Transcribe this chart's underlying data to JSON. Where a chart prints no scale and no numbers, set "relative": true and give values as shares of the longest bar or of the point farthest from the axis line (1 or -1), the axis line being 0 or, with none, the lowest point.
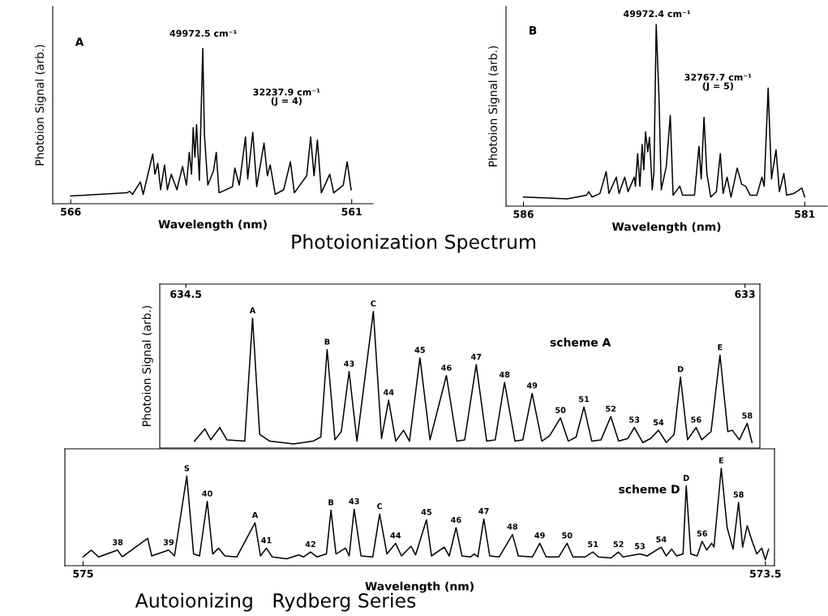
{
  "chart_data": [
    {
      "type": "line",
      "title": "A",
      "xlabel": "Wavelength (nm)",
      "ylabel": "Photoion Signal (arb.)",
      "relative": true,
      "xlim": [
        566.32,
        560.62
      ],
      "xticks": [
        566,
        561
      ],
      "x": [
        566.0,
        565.0,
        564.95,
        564.9,
        564.76,
        564.71,
        564.54,
        564.5,
        564.45,
        564.4,
        564.33,
        564.28,
        564.21,
        564.11,
        564.01,
        563.94,
        563.89,
        563.85,
        563.82,
        563.79,
        563.76,
        563.71,
        563.65,
        563.62,
        563.56,
        563.46,
        563.41,
        563.36,
        563.12,
        563.08,
        563.0,
        562.89,
        562.85,
        562.76,
        562.69,
        562.56,
        562.5,
        562.45,
        562.36,
        562.21,
        562.09,
        562.02,
        561.8,
        561.73,
        561.67,
        561.61,
        561.54,
        561.39,
        561.32,
        561.15,
        561.08,
        561.01
      ],
      "series": [
        {
          "color": "#000000",
          "values": [
            0.05,
            0.07,
            0.08,
            0.06,
            0.14,
            0.06,
            0.32,
            0.19,
            0.26,
            0.09,
            0.25,
            0.09,
            0.19,
            0.09,
            0.24,
            0.12,
            0.33,
            0.19,
            0.49,
            0.3,
            0.51,
            0.15,
            1.0,
            0.44,
            0.12,
            0.21,
            0.33,
            0.07,
            0.11,
            0.23,
            0.12,
            0.43,
            0.16,
            0.46,
            0.11,
            0.39,
            0.18,
            0.25,
            0.06,
            0.09,
            0.27,
            0.07,
            0.18,
            0.43,
            0.18,
            0.41,
            0.07,
            0.19,
            0.07,
            0.12,
            0.27,
            0.09
          ]
        }
      ],
      "annotations": [
        "49972.5 cm⁻¹",
        "32237.9 cm⁻¹\n(J = 4)",
        "Photoionization Spectrum"
      ]
    },
    {
      "type": "line",
      "title": "B",
      "xlabel": "Wavelength (nm)",
      "ylabel": "Photoion Signal (arb.)",
      "relative": true,
      "xlim": [
        586.31,
        580.6
      ],
      "xticks": [
        586,
        581
      ],
      "x": [
        586.0,
        585.22,
        584.88,
        584.84,
        584.78,
        584.64,
        584.53,
        584.48,
        584.35,
        584.3,
        584.2,
        584.14,
        584.03,
        584.01,
        583.97,
        583.93,
        583.89,
        583.86,
        583.83,
        583.79,
        583.76,
        583.71,
        583.68,
        583.64,
        583.59,
        583.55,
        583.46,
        583.39,
        583.34,
        583.22,
        583.17,
        582.96,
        582.88,
        582.84,
        582.79,
        582.74,
        582.67,
        582.57,
        582.5,
        582.45,
        582.38,
        582.31,
        582.2,
        582.12,
        582.05,
        581.97,
        581.85,
        581.76,
        581.72,
        581.65,
        581.59,
        581.51,
        581.45,
        581.37,
        581.32,
        581.19,
        581.05,
        581.0
      ],
      "series": [
        {
          "color": "#000000",
          "values": [
            0.05,
            0.04,
            0.06,
            0.08,
            0.05,
            0.07,
            0.19,
            0.07,
            0.16,
            0.07,
            0.16,
            0.08,
            0.16,
            0.11,
            0.29,
            0.11,
            0.34,
            0.2,
            0.41,
            0.3,
            0.38,
            0.09,
            0.19,
            1.0,
            0.59,
            0.09,
            0.22,
            0.5,
            0.06,
            0.11,
            0.06,
            0.06,
            0.33,
            0.15,
            0.49,
            0.18,
            0.05,
            0.08,
            0.29,
            0.07,
            0.16,
            0.05,
            0.21,
            0.12,
            0.11,
            0.06,
            0.06,
            0.16,
            0.11,
            0.65,
            0.15,
            0.31,
            0.08,
            0.18,
            0.06,
            0.07,
            0.1,
            0.05
          ]
        }
      ],
      "annotations": [
        "49972.4 cm⁻¹",
        "32767.7 cm⁻¹\n(J = 5)"
      ]
    },
    {
      "type": "line",
      "title": "scheme A",
      "ylabel": "Photoion Signal (arb.)",
      "relative": true,
      "xlim": [
        634.57,
        632.96
      ],
      "xticks": [
        634.5,
        633
      ],
      "x": [
        634.477,
        634.449,
        634.433,
        634.409,
        634.39,
        634.342,
        634.321,
        634.302,
        634.275,
        634.211,
        634.159,
        634.138,
        634.121,
        634.1,
        634.083,
        634.062,
        634.041,
        633.997,
        633.975,
        633.956,
        633.937,
        633.916,
        633.9,
        633.872,
        633.845,
        633.801,
        633.773,
        633.752,
        633.721,
        633.693,
        633.67,
        633.645,
        633.617,
        633.596,
        633.571,
        633.545,
        633.524,
        633.495,
        633.474,
        633.453,
        633.432,
        633.411,
        633.386,
        633.36,
        633.339,
        633.314,
        633.297,
        633.274,
        633.253,
        633.232,
        633.211,
        633.19,
        633.173,
        633.154,
        633.131,
        633.116,
        633.091,
        633.067,
        633.046,
        633.034,
        633.015,
        632.994,
        632.981
      ],
      "series": [
        {
          "color": "#000000",
          "values": [
            0.05,
            0.14,
            0.06,
            0.15,
            0.06,
            0.05,
            0.95,
            0.1,
            0.05,
            0.03,
            0.05,
            0.08,
            0.72,
            0.06,
            0.12,
            0.56,
            0.05,
            1.0,
            0.07,
            0.35,
            0.05,
            0.13,
            0.05,
            0.66,
            0.06,
            0.53,
            0.05,
            0.06,
            0.61,
            0.05,
            0.06,
            0.48,
            0.05,
            0.06,
            0.4,
            0.05,
            0.09,
            0.22,
            0.05,
            0.08,
            0.3,
            0.05,
            0.06,
            0.23,
            0.05,
            0.07,
            0.15,
            0.04,
            0.07,
            0.13,
            0.04,
            0.1,
            0.52,
            0.06,
            0.15,
            0.06,
            0.12,
            0.68,
            0.12,
            0.13,
            0.06,
            0.18,
            0.04
          ]
        }
      ],
      "annotations": [
        {
          "text": "A",
          "x": 634.321,
          "y": 0.95
        },
        {
          "text": "B",
          "x": 634.121,
          "y": 0.72
        },
        {
          "text": "C",
          "x": 633.997,
          "y": 1.0
        },
        {
          "text": "D",
          "x": 633.173,
          "y": 0.52
        },
        {
          "text": "E",
          "x": 633.067,
          "y": 0.68
        },
        {
          "text": "43",
          "x": 634.062,
          "y": 0.56
        },
        {
          "text": "44",
          "x": 633.956,
          "y": 0.35
        },
        {
          "text": "45",
          "x": 633.872,
          "y": 0.66
        },
        {
          "text": "46",
          "x": 633.801,
          "y": 0.53
        },
        {
          "text": "47",
          "x": 633.721,
          "y": 0.61
        },
        {
          "text": "48",
          "x": 633.645,
          "y": 0.48
        },
        {
          "text": "49",
          "x": 633.571,
          "y": 0.4
        },
        {
          "text": "50",
          "x": 633.495,
          "y": 0.22
        },
        {
          "text": "51",
          "x": 633.432,
          "y": 0.3
        },
        {
          "text": "52",
          "x": 633.36,
          "y": 0.23
        },
        {
          "text": "53",
          "x": 633.297,
          "y": 0.15
        },
        {
          "text": "54",
          "x": 633.232,
          "y": 0.13
        },
        {
          "text": "56",
          "x": 633.131,
          "y": 0.15
        },
        {
          "text": "58",
          "x": 632.994,
          "y": 0.18
        }
      ]
    },
    {
      "type": "line",
      "title": "scheme D",
      "xlabel": "Wavelength (nm)",
      "relative": true,
      "xlim": [
        575.04,
        573.48
      ],
      "xticks": [
        575,
        573.5
      ],
      "x": [
        575.0,
        574.982,
        574.966,
        574.924,
        574.914,
        574.858,
        574.849,
        574.812,
        574.799,
        574.772,
        574.757,
        574.744,
        574.727,
        574.715,
        574.702,
        574.688,
        574.662,
        574.622,
        574.61,
        574.597,
        574.584,
        574.552,
        574.526,
        574.515,
        574.5,
        574.486,
        574.465,
        574.455,
        574.444,
        574.423,
        574.415,
        574.404,
        574.389,
        574.363,
        574.348,
        574.332,
        574.313,
        574.3,
        574.279,
        574.269,
        574.245,
        574.234,
        574.206,
        574.195,
        574.18,
        574.167,
        574.148,
        574.14,
        574.132,
        574.119,
        574.106,
        574.085,
        574.056,
        574.043,
        574.012,
        573.996,
        573.982,
        573.954,
        573.936,
        573.923,
        573.896,
        573.879,
        573.867,
        573.839,
        573.823,
        573.813,
        573.776,
        573.76,
        573.729,
        573.718,
        573.706,
        573.695,
        573.681,
        573.674,
        573.664,
        573.65,
        573.639,
        573.629,
        573.618,
        573.613,
        573.597,
        573.584,
        573.571,
        573.559,
        573.55,
        573.54,
        573.529,
        573.519,
        573.508,
        573.5,
        573.493
      ],
      "series": [
        {
          "color": "#000000",
          "values": [
            0.09,
            0.16,
            0.09,
            0.16,
            0.09,
            0.28,
            0.1,
            0.16,
            0.1,
            0.92,
            0.12,
            0.1,
            0.66,
            0.12,
            0.18,
            0.1,
            0.09,
            0.44,
            0.1,
            0.18,
            0.09,
            0.07,
            0.11,
            0.09,
            0.14,
            0.09,
            0.12,
            0.57,
            0.12,
            0.18,
            0.1,
            0.58,
            0.1,
            0.09,
            0.53,
            0.12,
            0.23,
            0.1,
            0.2,
            0.11,
            0.47,
            0.1,
            0.19,
            0.1,
            0.39,
            0.1,
            0.09,
            0.12,
            0.09,
            0.48,
            0.1,
            0.09,
            0.32,
            0.1,
            0.09,
            0.23,
            0.09,
            0.09,
            0.23,
            0.09,
            0.09,
            0.14,
            0.09,
            0.08,
            0.14,
            0.09,
            0.12,
            0.1,
            0.19,
            0.1,
            0.17,
            0.1,
            0.12,
            0.82,
            0.12,
            0.1,
            0.25,
            0.16,
            0.23,
            0.19,
            1.0,
            0.39,
            0.17,
            0.65,
            0.19,
            0.41,
            0.25,
            0.12,
            0.18,
            0.06,
            0.17
          ]
        }
      ],
      "annotations": [
        {
          "text": "S",
          "x": 574.772,
          "y": 0.92
        },
        {
          "text": "A",
          "x": 574.622,
          "y": 0.44
        },
        {
          "text": "B",
          "x": 574.455,
          "y": 0.57
        },
        {
          "text": "C",
          "x": 574.348,
          "y": 0.53
        },
        {
          "text": "D",
          "x": 573.674,
          "y": 0.82
        },
        {
          "text": "E",
          "x": 573.597,
          "y": 1.0
        },
        {
          "text": "38",
          "x": 574.924,
          "y": 0.16
        },
        {
          "text": "39",
          "x": 574.812,
          "y": 0.16
        },
        {
          "text": "40",
          "x": 574.727,
          "y": 0.66
        },
        {
          "text": "41",
          "x": 574.597,
          "y": 0.18
        },
        {
          "text": "42",
          "x": 574.5,
          "y": 0.14
        },
        {
          "text": "43",
          "x": 574.404,
          "y": 0.58
        },
        {
          "text": "44",
          "x": 574.313,
          "y": 0.23
        },
        {
          "text": "45",
          "x": 574.245,
          "y": 0.47
        },
        {
          "text": "46",
          "x": 574.18,
          "y": 0.39
        },
        {
          "text": "47",
          "x": 574.119,
          "y": 0.48
        },
        {
          "text": "48",
          "x": 574.056,
          "y": 0.32
        },
        {
          "text": "49",
          "x": 573.996,
          "y": 0.23
        },
        {
          "text": "50",
          "x": 573.936,
          "y": 0.23
        },
        {
          "text": "51",
          "x": 573.879,
          "y": 0.14
        },
        {
          "text": "52",
          "x": 573.823,
          "y": 0.14
        },
        {
          "text": "53",
          "x": 573.776,
          "y": 0.12
        },
        {
          "text": "54",
          "x": 573.729,
          "y": 0.19
        },
        {
          "text": "56",
          "x": 573.639,
          "y": 0.25
        },
        {
          "text": "58",
          "x": 573.559,
          "y": 0.65
        },
        "Autoionizing   Rydberg Series"
      ]
    }
  ]
}
